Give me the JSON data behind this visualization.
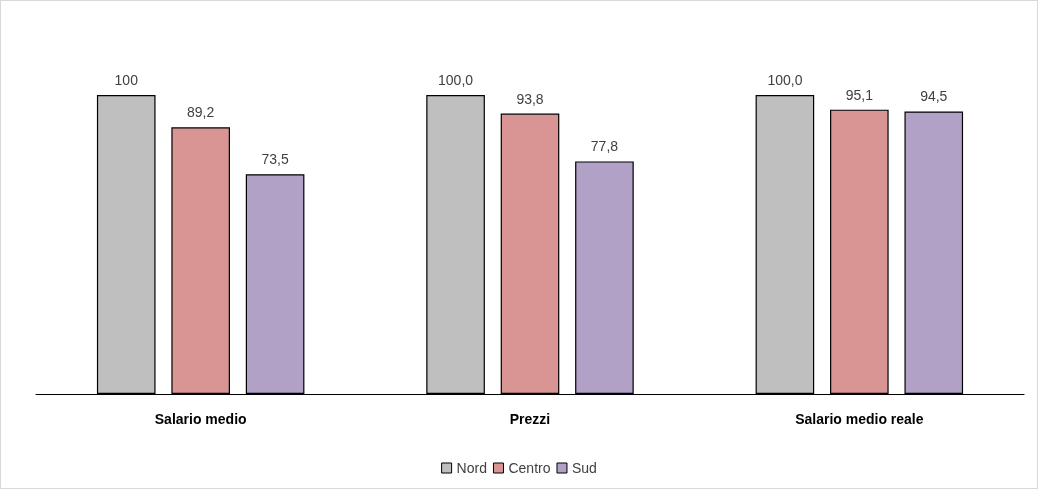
{
  "chart_data": {
    "type": "bar",
    "categories": [
      "Salario medio",
      "Prezzi",
      "Salario medio reale"
    ],
    "series": [
      {
        "name": "Nord",
        "color": "#bfbfbf",
        "values": [
          100,
          100.0,
          100.0
        ],
        "value_labels": [
          "100",
          "100,0",
          "100,0"
        ]
      },
      {
        "name": "Centro",
        "color": "#d99594",
        "values": [
          89.2,
          93.8,
          95.1
        ],
        "value_labels": [
          "89,2",
          "93,8",
          "95,1"
        ]
      },
      {
        "name": "Sud",
        "color": "#b2a1c7",
        "values": [
          73.5,
          77.8,
          94.5
        ],
        "value_labels": [
          "73,5",
          "77,8",
          "94,5"
        ]
      }
    ],
    "tick_labels": "x",
    "grid": false,
    "legend": "bottom"
  }
}
